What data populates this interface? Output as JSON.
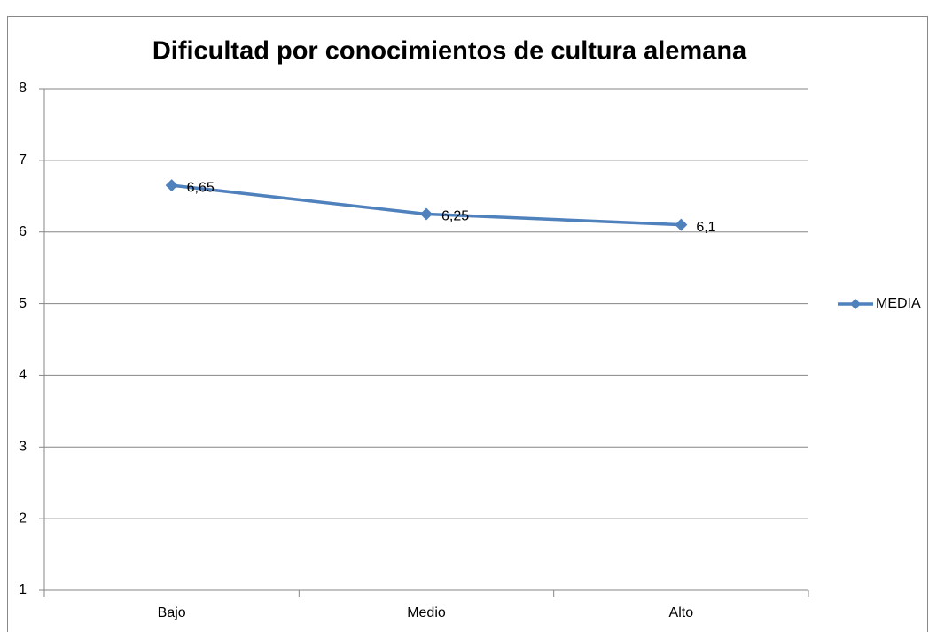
{
  "chart_data": {
    "type": "line",
    "title": "Dificultad por conocimientos de cultura alemana",
    "categories": [
      "Bajo",
      "Medio",
      "Alto"
    ],
    "series": [
      {
        "name": "MEDIA",
        "color": "#4f81bd",
        "values": [
          6.65,
          6.25,
          6.1
        ],
        "value_labels": [
          "6,65",
          "6,25",
          "6,1"
        ]
      }
    ],
    "ylim": [
      1,
      8
    ],
    "yticks": [
      1,
      2,
      3,
      4,
      5,
      6,
      7,
      8
    ],
    "grid": true,
    "legend": "right"
  }
}
